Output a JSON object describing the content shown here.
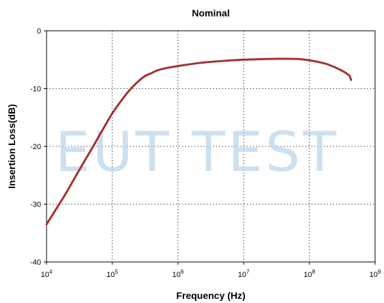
{
  "chart_data": {
    "type": "line",
    "title": "Nominal",
    "xlabel": "Frequency (Hz)",
    "ylabel": "Insertion Loss(dB)",
    "x_scale": "log",
    "xlim": [
      10000,
      1000000000
    ],
    "ylim": [
      -40,
      0
    ],
    "x_ticks": [
      {
        "base": "10",
        "exp": "4",
        "value": 10000
      },
      {
        "base": "10",
        "exp": "5",
        "value": 100000
      },
      {
        "base": "10",
        "exp": "6",
        "value": 1000000
      },
      {
        "base": "10",
        "exp": "7",
        "value": 10000000
      },
      {
        "base": "10",
        "exp": "8",
        "value": 100000000
      },
      {
        "base": "10",
        "exp": "9",
        "value": 1000000000
      }
    ],
    "y_ticks": [
      "0",
      "-10",
      "-20",
      "-30",
      "-40"
    ],
    "y_tick_values": [
      0,
      -10,
      -20,
      -30,
      -40
    ],
    "grid": true,
    "series": [
      {
        "color": "#a3312c",
        "x": [
          10000,
          15000,
          20000,
          30000,
          50000,
          70000,
          100000,
          150000,
          200000,
          300000,
          400000,
          500000,
          700000,
          1000000,
          2000000,
          3000000,
          5000000,
          10000000,
          20000000,
          30000000,
          50000000,
          70000000,
          100000000,
          150000000,
          200000000,
          300000000,
          400000000,
          430000000
        ],
        "y": [
          -33.5,
          -30.3,
          -28.0,
          -24.5,
          -20.2,
          -17.3,
          -14.3,
          -11.5,
          -9.8,
          -8.0,
          -7.3,
          -6.8,
          -6.4,
          -6.1,
          -5.6,
          -5.4,
          -5.2,
          -5.0,
          -4.9,
          -4.85,
          -4.85,
          -4.9,
          -5.1,
          -5.5,
          -5.9,
          -6.8,
          -7.7,
          -8.5
        ]
      }
    ]
  },
  "watermark": {
    "text": "EUT TEST",
    "color": "#bcd5ea"
  }
}
